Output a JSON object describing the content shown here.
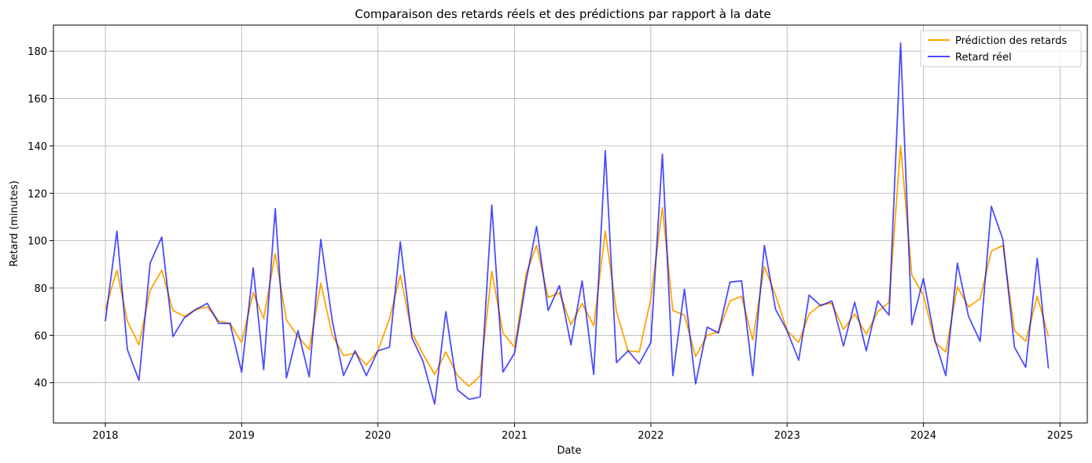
{
  "chart_data": {
    "type": "line",
    "title": "Comparaison des retards réels et des prédictions par rapport à la date",
    "xlabel": "Date",
    "ylabel": "Retard (minutes)",
    "x_ticks": [
      "2018",
      "2019",
      "2020",
      "2021",
      "2022",
      "2023",
      "2024",
      "2025"
    ],
    "y_ticks": [
      40,
      60,
      80,
      100,
      120,
      140,
      160,
      180
    ],
    "xlim": [
      "2017-08-15",
      "2025-03-15"
    ],
    "ylim": [
      23,
      191
    ],
    "grid": true,
    "legend_position": "top-right",
    "start_month": "2018-01",
    "series": [
      {
        "name": "Prédiction des retards",
        "color": "#ffa500",
        "values": [
          71,
          87.5,
          66,
          56,
          79,
          87.5,
          70.5,
          68,
          71,
          72,
          66,
          65,
          57,
          78,
          67,
          94.5,
          66.5,
          59.5,
          54,
          82,
          60,
          51.5,
          52.5,
          47.5,
          53.5,
          67,
          85.5,
          61,
          52,
          43.5,
          53,
          43,
          38.5,
          43,
          87,
          61,
          55,
          86,
          98,
          76,
          78,
          64.5,
          73.5,
          64,
          104,
          70,
          53.5,
          53,
          75.5,
          114,
          70.5,
          68.5,
          51,
          60,
          61.5,
          74.5,
          76.5,
          58,
          89,
          77,
          62,
          57,
          69,
          73,
          73.5,
          62.5,
          69,
          60.5,
          70,
          74,
          140,
          85.5,
          77,
          57,
          53,
          80.5,
          72,
          75.5,
          95.5,
          98,
          62,
          57.5,
          76.5,
          59.5
        ]
      },
      {
        "name": "Retard réel",
        "color": "#0000ff",
        "values": [
          66,
          104,
          54,
          41,
          90.5,
          101.5,
          59.5,
          67.5,
          71,
          73.5,
          65,
          65,
          44.5,
          88.5,
          45.5,
          113.5,
          42,
          62,
          42.5,
          100.5,
          66,
          43,
          53.5,
          43,
          53.5,
          55,
          99.5,
          59,
          49,
          31,
          70,
          37,
          33,
          34,
          115,
          44.5,
          52.5,
          83,
          106,
          70.5,
          81,
          56,
          83,
          43.5,
          138,
          48.5,
          53.5,
          48,
          57,
          136.5,
          43,
          79.5,
          39.5,
          63.5,
          61,
          82.5,
          83,
          43,
          98,
          71,
          62,
          49.5,
          77,
          72.5,
          74.5,
          55.5,
          74,
          53.5,
          74.5,
          68.5,
          183.5,
          64.5,
          84,
          58,
          43,
          90.5,
          68,
          57.5,
          114.5,
          100.5,
          55,
          46.5,
          92.5,
          46
        ]
      }
    ]
  }
}
